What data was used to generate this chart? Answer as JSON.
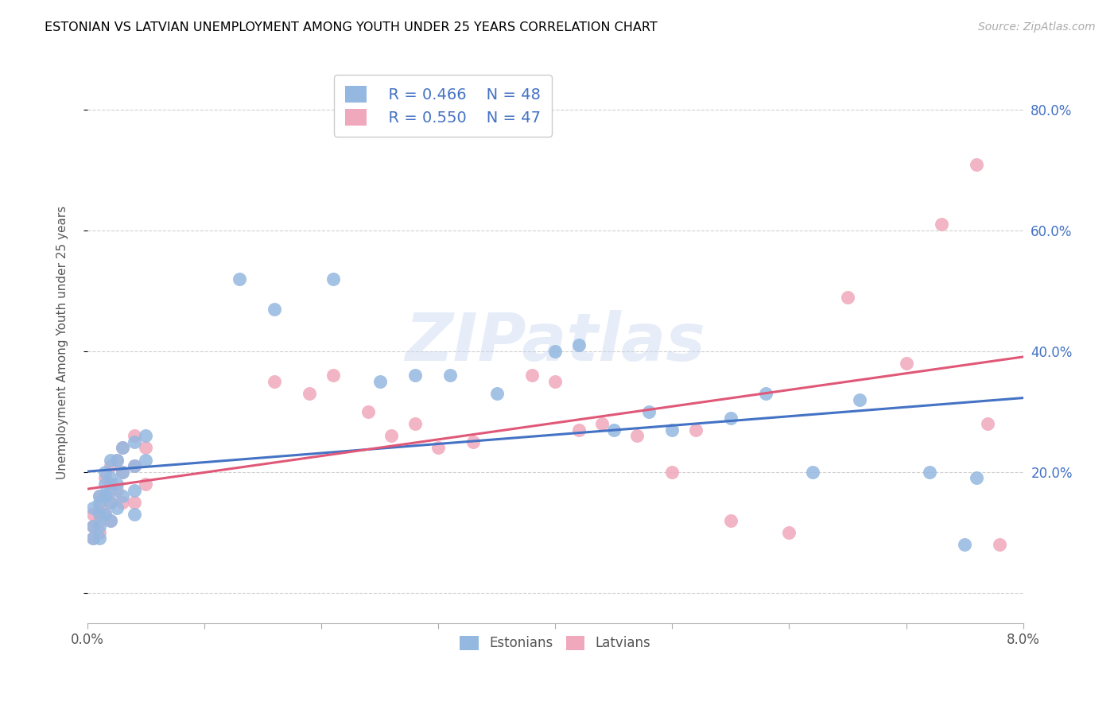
{
  "title": "ESTONIAN VS LATVIAN UNEMPLOYMENT AMONG YOUTH UNDER 25 YEARS CORRELATION CHART",
  "source": "Source: ZipAtlas.com",
  "ylabel": "Unemployment Among Youth under 25 years",
  "xlim": [
    0.0,
    0.08
  ],
  "ylim": [
    -0.05,
    0.88
  ],
  "xticks": [
    0.0,
    0.01,
    0.02,
    0.03,
    0.04,
    0.05,
    0.06,
    0.07,
    0.08
  ],
  "xtick_labels": [
    "0.0%",
    "",
    "",
    "",
    "",
    "",
    "",
    "",
    "8.0%"
  ],
  "yticks": [
    0.0,
    0.2,
    0.4,
    0.6,
    0.8
  ],
  "ytick_labels_right": [
    "",
    "20.0%",
    "40.0%",
    "60.0%",
    "80.0%"
  ],
  "color_estonian": "#94b8e0",
  "color_latvian": "#f0a8bc",
  "color_line_estonian": "#4472c4",
  "color_line_latvian": "#e05878",
  "color_yaxis_labels": "#4472c4",
  "watermark": "ZIPatlas",
  "legend_r_estonian": "R = 0.466",
  "legend_n_estonian": "N = 48",
  "legend_r_latvian": "R = 0.550",
  "legend_n_latvian": "N = 47",
  "estonian_x": [
    0.0005,
    0.0005,
    0.0005,
    0.001,
    0.001,
    0.001,
    0.001,
    0.001,
    0.0015,
    0.0015,
    0.0015,
    0.0015,
    0.002,
    0.002,
    0.002,
    0.002,
    0.002,
    0.0025,
    0.0025,
    0.0025,
    0.003,
    0.003,
    0.003,
    0.004,
    0.004,
    0.004,
    0.004,
    0.005,
    0.005,
    0.013,
    0.016,
    0.021,
    0.025,
    0.028,
    0.031,
    0.035,
    0.04,
    0.042,
    0.045,
    0.048,
    0.05,
    0.055,
    0.058,
    0.062,
    0.066,
    0.072,
    0.075,
    0.076
  ],
  "estonian_y": [
    0.14,
    0.11,
    0.09,
    0.16,
    0.15,
    0.13,
    0.11,
    0.09,
    0.2,
    0.18,
    0.16,
    0.13,
    0.22,
    0.19,
    0.17,
    0.15,
    0.12,
    0.22,
    0.18,
    0.14,
    0.24,
    0.2,
    0.16,
    0.25,
    0.21,
    0.17,
    0.13,
    0.26,
    0.22,
    0.52,
    0.47,
    0.52,
    0.35,
    0.36,
    0.36,
    0.33,
    0.4,
    0.41,
    0.27,
    0.3,
    0.27,
    0.29,
    0.33,
    0.2,
    0.32,
    0.2,
    0.08,
    0.19
  ],
  "latvian_x": [
    0.0005,
    0.0005,
    0.0005,
    0.001,
    0.001,
    0.001,
    0.001,
    0.0015,
    0.0015,
    0.0015,
    0.002,
    0.002,
    0.002,
    0.002,
    0.0025,
    0.0025,
    0.003,
    0.003,
    0.003,
    0.004,
    0.004,
    0.004,
    0.005,
    0.005,
    0.016,
    0.019,
    0.021,
    0.024,
    0.026,
    0.028,
    0.03,
    0.033,
    0.038,
    0.04,
    0.042,
    0.044,
    0.047,
    0.05,
    0.052,
    0.055,
    0.06,
    0.065,
    0.07,
    0.073,
    0.076,
    0.077,
    0.078
  ],
  "latvian_y": [
    0.13,
    0.11,
    0.09,
    0.16,
    0.14,
    0.12,
    0.1,
    0.19,
    0.16,
    0.13,
    0.21,
    0.18,
    0.15,
    0.12,
    0.22,
    0.17,
    0.24,
    0.2,
    0.15,
    0.26,
    0.21,
    0.15,
    0.24,
    0.18,
    0.35,
    0.33,
    0.36,
    0.3,
    0.26,
    0.28,
    0.24,
    0.25,
    0.36,
    0.35,
    0.27,
    0.28,
    0.26,
    0.2,
    0.27,
    0.12,
    0.1,
    0.49,
    0.38,
    0.61,
    0.71,
    0.28,
    0.08
  ]
}
